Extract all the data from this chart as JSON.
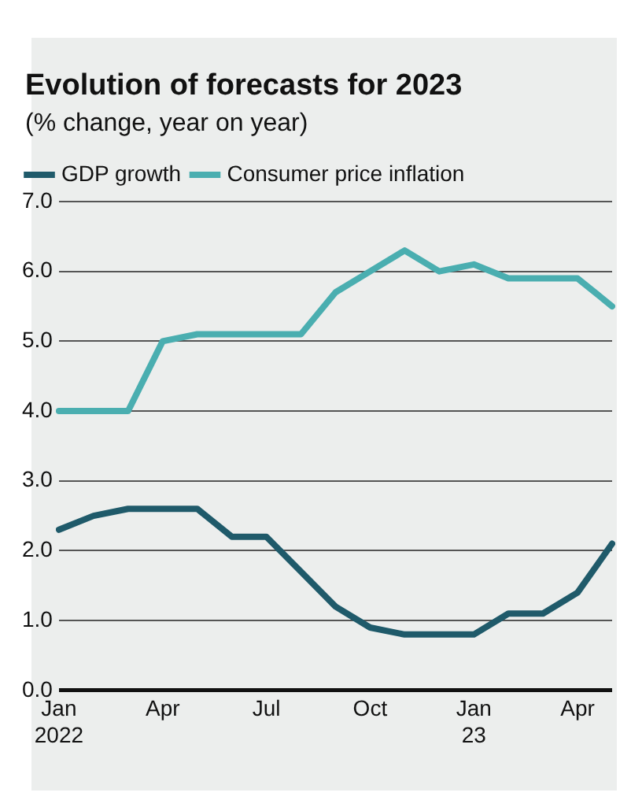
{
  "chart_data": {
    "type": "line",
    "title": "Evolution of forecasts for 2023",
    "subtitle": "(% change, year on year)",
    "categories": [
      "Jan 2022",
      null,
      null,
      "Apr",
      null,
      null,
      "Jul",
      null,
      null,
      "Oct",
      null,
      null,
      "Jan 23",
      null,
      null,
      "Apr",
      null
    ],
    "series": [
      {
        "name": "GDP growth",
        "color": "#1f5a6a",
        "values": [
          2.3,
          2.5,
          2.6,
          2.6,
          2.6,
          2.2,
          2.2,
          1.7,
          1.2,
          0.9,
          0.8,
          0.8,
          0.8,
          1.1,
          1.1,
          1.4,
          2.1
        ]
      },
      {
        "name": "Consumer price inflation",
        "color": "#4aaeb0",
        "values": [
          4.0,
          4.0,
          4.0,
          5.0,
          5.1,
          5.1,
          5.1,
          5.1,
          5.7,
          6.0,
          6.3,
          6.0,
          6.1,
          5.9,
          5.9,
          5.9,
          5.5
        ]
      }
    ],
    "ylim": [
      0,
      7
    ],
    "yticks": [
      {
        "value": 0,
        "label": "0.0"
      },
      {
        "value": 1,
        "label": "1.0"
      },
      {
        "value": 2,
        "label": "2.0"
      },
      {
        "value": 3,
        "label": "3.0"
      },
      {
        "value": 4,
        "label": "4.0"
      },
      {
        "value": 5,
        "label": "5.0"
      },
      {
        "value": 6,
        "label": "6.0"
      },
      {
        "value": 7,
        "label": "7.0"
      }
    ],
    "grid": "y",
    "legend": "top left",
    "marker": "none",
    "line_style": "solid"
  }
}
